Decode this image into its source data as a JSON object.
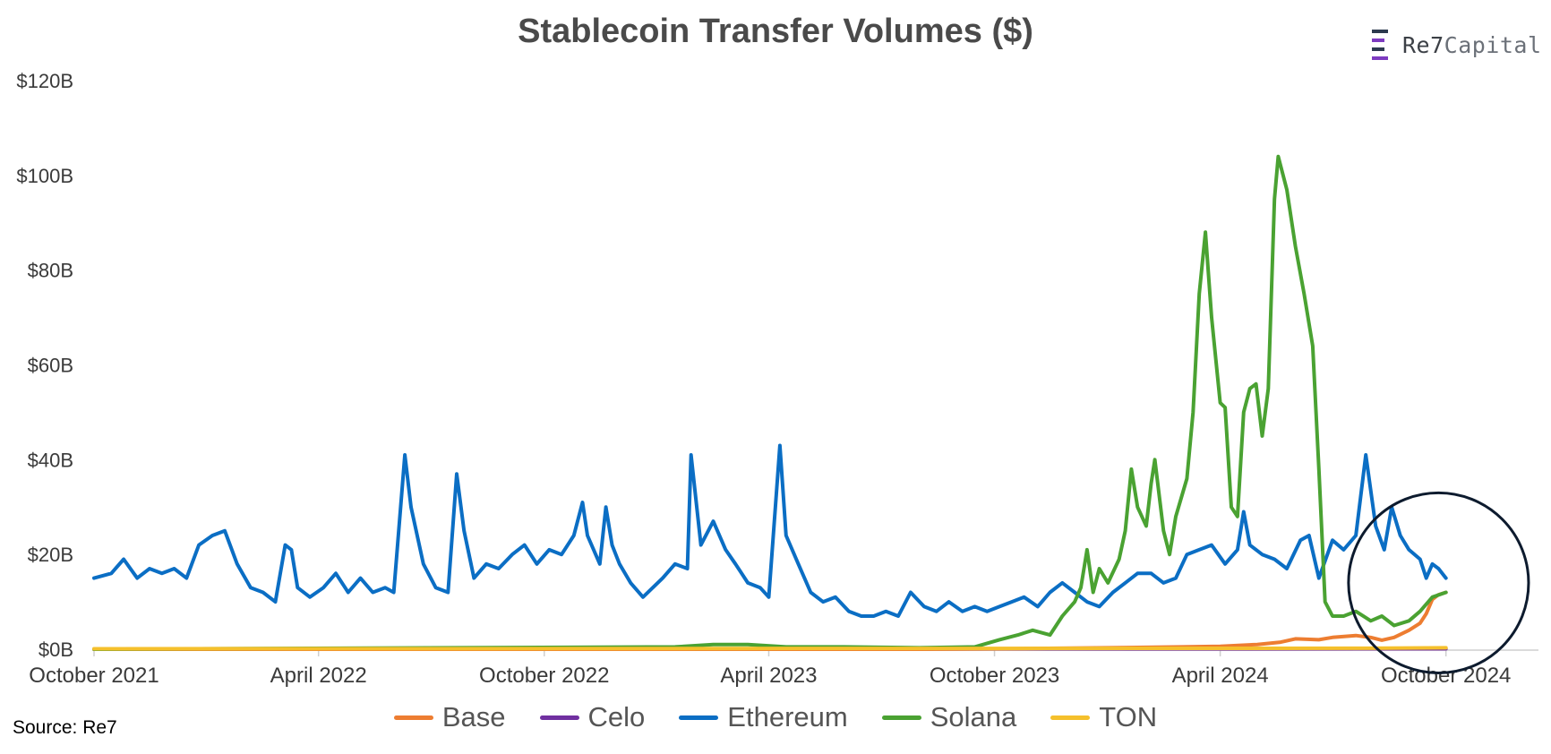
{
  "brand": {
    "name_main": "Re7",
    "name_secondary": "Capital"
  },
  "source": "Source: Re7",
  "chart_data": {
    "type": "line",
    "title": "Stablecoin Transfer Volumes ($)",
    "xlabel": "",
    "ylabel": "",
    "x_range": [
      "2021-10-01",
      "2024-12-15"
    ],
    "ylim": [
      0,
      120
    ],
    "y_unit": "$B",
    "y_ticks": [
      {
        "value": 0,
        "label": "$0B"
      },
      {
        "value": 20,
        "label": "$20B"
      },
      {
        "value": 40,
        "label": "$40B"
      },
      {
        "value": 60,
        "label": "$60B"
      },
      {
        "value": 80,
        "label": "$80B"
      },
      {
        "value": 100,
        "label": "$100B"
      },
      {
        "value": 120,
        "label": "$120B"
      }
    ],
    "x_ticks": [
      {
        "date": "2021-10-01",
        "label": "October 2021"
      },
      {
        "date": "2022-04-01",
        "label": "April 2022"
      },
      {
        "date": "2022-10-01",
        "label": "October 2022"
      },
      {
        "date": "2023-04-01",
        "label": "April 2023"
      },
      {
        "date": "2023-10-01",
        "label": "October 2023"
      },
      {
        "date": "2024-04-01",
        "label": "April 2024"
      },
      {
        "date": "2024-10-01",
        "label": "October 2024"
      }
    ],
    "grid": false,
    "legend_position": "bottom",
    "highlight_circle": {
      "center_date": "2024-09-25",
      "center_value": 14,
      "radius_value": 19
    },
    "series": [
      {
        "name": "Base",
        "color": "#ed7d31",
        "points": [
          [
            "2021-10-01",
            0
          ],
          [
            "2023-08-01",
            0
          ],
          [
            "2023-10-01",
            0.1
          ],
          [
            "2024-01-01",
            0.3
          ],
          [
            "2024-03-01",
            0.5
          ],
          [
            "2024-04-01",
            0.6
          ],
          [
            "2024-05-01",
            1.0
          ],
          [
            "2024-05-20",
            1.5
          ],
          [
            "2024-06-01",
            2.2
          ],
          [
            "2024-06-20",
            2.0
          ],
          [
            "2024-07-01",
            2.5
          ],
          [
            "2024-07-20",
            2.9
          ],
          [
            "2024-08-01",
            2.5
          ],
          [
            "2024-08-10",
            1.9
          ],
          [
            "2024-08-20",
            2.5
          ],
          [
            "2024-09-01",
            4.0
          ],
          [
            "2024-09-10",
            5.5
          ],
          [
            "2024-09-15",
            7.5
          ],
          [
            "2024-09-20",
            10.5
          ],
          [
            "2024-09-25",
            11.5
          ],
          [
            "2024-10-01",
            12.0
          ]
        ]
      },
      {
        "name": "Celo",
        "color": "#7030a0",
        "points": [
          [
            "2021-10-01",
            0
          ],
          [
            "2024-10-01",
            0.1
          ]
        ]
      },
      {
        "name": "Ethereum",
        "color": "#0b6ec4",
        "points": [
          [
            "2021-10-01",
            15
          ],
          [
            "2021-10-15",
            16
          ],
          [
            "2021-10-25",
            19
          ],
          [
            "2021-11-05",
            15
          ],
          [
            "2021-11-15",
            17
          ],
          [
            "2021-11-25",
            16
          ],
          [
            "2021-12-05",
            17
          ],
          [
            "2021-12-15",
            15
          ],
          [
            "2021-12-25",
            22
          ],
          [
            "2022-01-05",
            24
          ],
          [
            "2022-01-15",
            25
          ],
          [
            "2022-01-25",
            18
          ],
          [
            "2022-02-05",
            13
          ],
          [
            "2022-02-15",
            12
          ],
          [
            "2022-02-25",
            10
          ],
          [
            "2022-03-05",
            22
          ],
          [
            "2022-03-10",
            21
          ],
          [
            "2022-03-15",
            13
          ],
          [
            "2022-03-25",
            11
          ],
          [
            "2022-04-05",
            13
          ],
          [
            "2022-04-15",
            16
          ],
          [
            "2022-04-25",
            12
          ],
          [
            "2022-05-05",
            15
          ],
          [
            "2022-05-15",
            12
          ],
          [
            "2022-05-25",
            13
          ],
          [
            "2022-06-01",
            12
          ],
          [
            "2022-06-10",
            41
          ],
          [
            "2022-06-15",
            30
          ],
          [
            "2022-06-25",
            18
          ],
          [
            "2022-07-05",
            13
          ],
          [
            "2022-07-15",
            12
          ],
          [
            "2022-07-22",
            37
          ],
          [
            "2022-07-28",
            25
          ],
          [
            "2022-08-05",
            15
          ],
          [
            "2022-08-15",
            18
          ],
          [
            "2022-08-25",
            17
          ],
          [
            "2022-09-05",
            20
          ],
          [
            "2022-09-15",
            22
          ],
          [
            "2022-09-25",
            18
          ],
          [
            "2022-10-05",
            21
          ],
          [
            "2022-10-15",
            20
          ],
          [
            "2022-10-25",
            24
          ],
          [
            "2022-11-01",
            31
          ],
          [
            "2022-11-05",
            24
          ],
          [
            "2022-11-15",
            18
          ],
          [
            "2022-11-20",
            30
          ],
          [
            "2022-11-25",
            22
          ],
          [
            "2022-12-01",
            18
          ],
          [
            "2022-12-10",
            14
          ],
          [
            "2022-12-20",
            11
          ],
          [
            "2023-01-05",
            15
          ],
          [
            "2023-01-15",
            18
          ],
          [
            "2023-01-25",
            17
          ],
          [
            "2023-01-28",
            41
          ],
          [
            "2023-02-05",
            22
          ],
          [
            "2023-02-15",
            27
          ],
          [
            "2023-02-25",
            21
          ],
          [
            "2023-03-05",
            18
          ],
          [
            "2023-03-10",
            16
          ],
          [
            "2023-03-15",
            14
          ],
          [
            "2023-03-25",
            13
          ],
          [
            "2023-04-01",
            11
          ],
          [
            "2023-04-10",
            43
          ],
          [
            "2023-04-15",
            24
          ],
          [
            "2023-04-25",
            18
          ],
          [
            "2023-05-05",
            12
          ],
          [
            "2023-05-15",
            10
          ],
          [
            "2023-05-25",
            11
          ],
          [
            "2023-06-05",
            8
          ],
          [
            "2023-06-15",
            7
          ],
          [
            "2023-06-25",
            7
          ],
          [
            "2023-07-05",
            8
          ],
          [
            "2023-07-15",
            7
          ],
          [
            "2023-07-25",
            12
          ],
          [
            "2023-08-05",
            9
          ],
          [
            "2023-08-15",
            8
          ],
          [
            "2023-08-25",
            10
          ],
          [
            "2023-09-05",
            8
          ],
          [
            "2023-09-15",
            9
          ],
          [
            "2023-09-25",
            8
          ],
          [
            "2023-10-05",
            9
          ],
          [
            "2023-10-15",
            10
          ],
          [
            "2023-10-25",
            11
          ],
          [
            "2023-11-05",
            9
          ],
          [
            "2023-11-15",
            12
          ],
          [
            "2023-11-25",
            14
          ],
          [
            "2023-12-05",
            12
          ],
          [
            "2023-12-15",
            10
          ],
          [
            "2023-12-25",
            9
          ],
          [
            "2024-01-05",
            12
          ],
          [
            "2024-01-15",
            14
          ],
          [
            "2024-01-25",
            16
          ],
          [
            "2024-02-05",
            16
          ],
          [
            "2024-02-15",
            14
          ],
          [
            "2024-02-25",
            15
          ],
          [
            "2024-03-05",
            20
          ],
          [
            "2024-03-15",
            21
          ],
          [
            "2024-03-25",
            22
          ],
          [
            "2024-04-05",
            18
          ],
          [
            "2024-04-15",
            21
          ],
          [
            "2024-04-20",
            29
          ],
          [
            "2024-04-25",
            22
          ],
          [
            "2024-05-05",
            20
          ],
          [
            "2024-05-15",
            19
          ],
          [
            "2024-05-25",
            17
          ],
          [
            "2024-06-05",
            23
          ],
          [
            "2024-06-12",
            24
          ],
          [
            "2024-06-20",
            15
          ],
          [
            "2024-07-01",
            23
          ],
          [
            "2024-07-10",
            21
          ],
          [
            "2024-07-20",
            24
          ],
          [
            "2024-07-28",
            41
          ],
          [
            "2024-08-05",
            26
          ],
          [
            "2024-08-12",
            21
          ],
          [
            "2024-08-18",
            30
          ],
          [
            "2024-08-25",
            24
          ],
          [
            "2024-09-01",
            21
          ],
          [
            "2024-09-10",
            19
          ],
          [
            "2024-09-15",
            15
          ],
          [
            "2024-09-20",
            18
          ],
          [
            "2024-09-25",
            17
          ],
          [
            "2024-10-01",
            15
          ]
        ]
      },
      {
        "name": "Solana",
        "color": "#4aa232",
        "points": [
          [
            "2021-10-01",
            0
          ],
          [
            "2023-01-15",
            0.5
          ],
          [
            "2023-02-15",
            1
          ],
          [
            "2023-03-15",
            1
          ],
          [
            "2023-04-15",
            0.5
          ],
          [
            "2023-06-01",
            0.5
          ],
          [
            "2023-08-01",
            0.3
          ],
          [
            "2023-09-15",
            0.5
          ],
          [
            "2023-10-05",
            2
          ],
          [
            "2023-10-20",
            3
          ],
          [
            "2023-11-01",
            4
          ],
          [
            "2023-11-15",
            3
          ],
          [
            "2023-11-25",
            7
          ],
          [
            "2023-12-05",
            10
          ],
          [
            "2023-12-10",
            13
          ],
          [
            "2023-12-15",
            21
          ],
          [
            "2023-12-20",
            12
          ],
          [
            "2023-12-25",
            17
          ],
          [
            "2024-01-01",
            14
          ],
          [
            "2024-01-10",
            19
          ],
          [
            "2024-01-15",
            25
          ],
          [
            "2024-01-20",
            38
          ],
          [
            "2024-01-25",
            30
          ],
          [
            "2024-02-01",
            26
          ],
          [
            "2024-02-05",
            35
          ],
          [
            "2024-02-08",
            40
          ],
          [
            "2024-02-15",
            25
          ],
          [
            "2024-02-20",
            20
          ],
          [
            "2024-02-25",
            28
          ],
          [
            "2024-03-05",
            36
          ],
          [
            "2024-03-10",
            50
          ],
          [
            "2024-03-15",
            75
          ],
          [
            "2024-03-20",
            88
          ],
          [
            "2024-03-25",
            70
          ],
          [
            "2024-04-01",
            52
          ],
          [
            "2024-04-05",
            51
          ],
          [
            "2024-04-10",
            30
          ],
          [
            "2024-04-15",
            28
          ],
          [
            "2024-04-20",
            50
          ],
          [
            "2024-04-25",
            55
          ],
          [
            "2024-04-30",
            56
          ],
          [
            "2024-05-05",
            45
          ],
          [
            "2024-05-10",
            55
          ],
          [
            "2024-05-15",
            95
          ],
          [
            "2024-05-18",
            104
          ],
          [
            "2024-05-25",
            97
          ],
          [
            "2024-06-01",
            85
          ],
          [
            "2024-06-08",
            75
          ],
          [
            "2024-06-15",
            64
          ],
          [
            "2024-06-20",
            38
          ],
          [
            "2024-06-25",
            10
          ],
          [
            "2024-07-01",
            7
          ],
          [
            "2024-07-10",
            7
          ],
          [
            "2024-07-20",
            8
          ],
          [
            "2024-08-01",
            6
          ],
          [
            "2024-08-10",
            7
          ],
          [
            "2024-08-20",
            5
          ],
          [
            "2024-09-01",
            6
          ],
          [
            "2024-09-10",
            8
          ],
          [
            "2024-09-20",
            11
          ],
          [
            "2024-10-01",
            12
          ]
        ]
      },
      {
        "name": "TON",
        "color": "#f5c02c",
        "points": [
          [
            "2021-10-01",
            0.1
          ],
          [
            "2024-08-01",
            0.2
          ],
          [
            "2024-10-01",
            0.3
          ]
        ]
      }
    ]
  }
}
